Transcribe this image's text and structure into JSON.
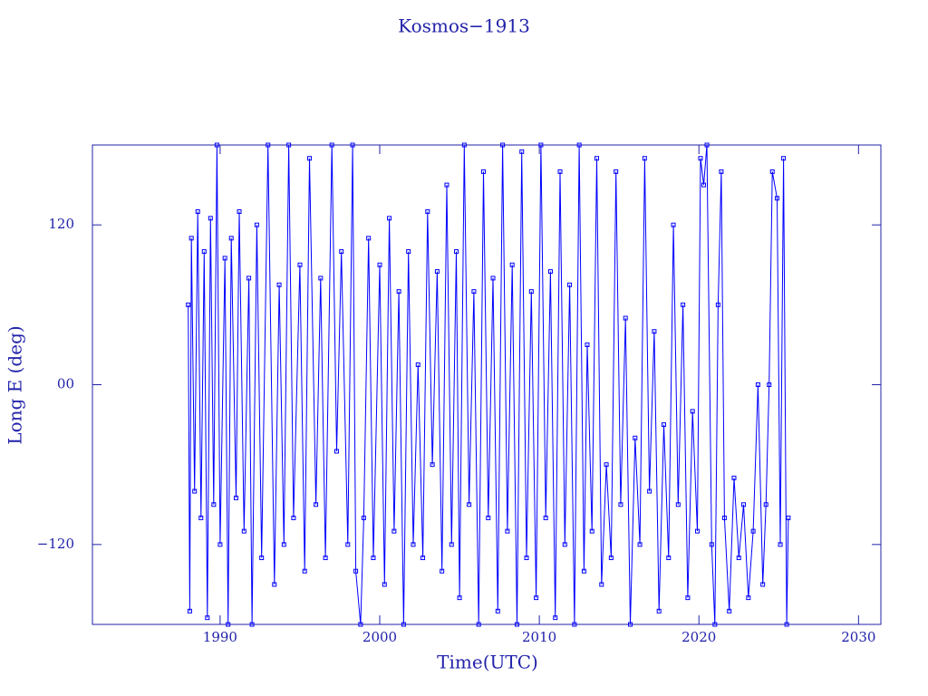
{
  "chart_data": {
    "type": "line",
    "title": "Kosmos−1913",
    "x_label": "Time(UTC)",
    "y_label": "Long E (deg)",
    "color": "#0000ff",
    "markers": true,
    "xlim": [
      1982,
      2031.4
    ],
    "xticks": [
      1990,
      2000,
      2010,
      2020,
      2030
    ],
    "ylim": [
      -180,
      180
    ],
    "yticks": [
      {
        "value": -120,
        "label": "−120"
      },
      {
        "value": 0,
        "label": "00"
      },
      120
    ],
    "x": [
      1988.0,
      1988.1,
      1988.2,
      1988.4,
      1988.6,
      1988.8,
      1989.0,
      1989.2,
      1989.4,
      1989.6,
      1989.8,
      1990.0,
      1990.3,
      1990.5,
      1990.7,
      1991.0,
      1991.2,
      1991.5,
      1991.8,
      1992.0,
      1992.3,
      1992.6,
      1993.0,
      1993.4,
      1993.7,
      1994.0,
      1994.3,
      1994.6,
      1995.0,
      1995.3,
      1995.6,
      1996.0,
      1996.3,
      1996.6,
      1997.0,
      1997.3,
      1997.6,
      1998.0,
      1998.3,
      1998.5,
      1998.8,
      1999.0,
      1999.3,
      1999.6,
      2000.0,
      2000.3,
      2000.6,
      2000.9,
      2001.2,
      2001.5,
      2001.8,
      2002.1,
      2002.4,
      2002.7,
      2003.0,
      2003.3,
      2003.6,
      2003.9,
      2004.2,
      2004.5,
      2004.8,
      2005.0,
      2005.3,
      2005.6,
      2005.9,
      2006.2,
      2006.5,
      2006.8,
      2007.1,
      2007.4,
      2007.7,
      2008.0,
      2008.3,
      2008.6,
      2008.9,
      2009.2,
      2009.5,
      2009.8,
      2010.1,
      2010.4,
      2010.7,
      2011.0,
      2011.3,
      2011.6,
      2011.9,
      2012.2,
      2012.5,
      2012.8,
      2013.0,
      2013.3,
      2013.6,
      2013.9,
      2014.2,
      2014.5,
      2014.8,
      2015.1,
      2015.4,
      2015.7,
      2016.0,
      2016.3,
      2016.6,
      2016.9,
      2017.2,
      2017.5,
      2017.8,
      2018.1,
      2018.4,
      2018.7,
      2019.0,
      2019.3,
      2019.6,
      2019.9,
      2020.1,
      2020.3,
      2020.5,
      2020.8,
      2021.0,
      2021.2,
      2021.4,
      2021.6,
      2021.9,
      2022.2,
      2022.5,
      2022.8,
      2023.1,
      2023.4,
      2023.7,
      2024.0,
      2024.2,
      2024.4,
      2024.6,
      2024.9,
      2025.1,
      2025.3,
      2025.5,
      2025.6
    ],
    "values": [
      60,
      -170,
      110,
      -80,
      130,
      -100,
      100,
      -175,
      125,
      -90,
      180,
      -120,
      95,
      -180,
      110,
      -85,
      130,
      -110,
      80,
      -180,
      120,
      -130,
      180,
      -150,
      75,
      -120,
      180,
      -100,
      90,
      -140,
      170,
      -90,
      80,
      -130,
      180,
      -50,
      100,
      -120,
      180,
      -140,
      -180,
      -100,
      110,
      -130,
      90,
      -150,
      125,
      -110,
      70,
      -180,
      100,
      -120,
      15,
      -130,
      130,
      -60,
      85,
      -140,
      150,
      -120,
      100,
      -160,
      180,
      -90,
      70,
      -180,
      160,
      -100,
      80,
      -170,
      180,
      -110,
      90,
      -180,
      175,
      -130,
      70,
      -160,
      180,
      -100,
      85,
      -175,
      160,
      -120,
      75,
      -180,
      180,
      -140,
      30,
      -110,
      170,
      -150,
      -60,
      -130,
      160,
      -90,
      50,
      -180,
      -40,
      -120,
      170,
      -80,
      40,
      -170,
      -30,
      -130,
      120,
      -90,
      60,
      -160,
      -20,
      -110,
      170,
      150,
      180,
      -120,
      -180,
      60,
      160,
      -100,
      -170,
      -70,
      -130,
      -90,
      -160,
      -110,
      0,
      -150,
      -90,
      0,
      160,
      140,
      -120,
      170,
      -180,
      -100
    ]
  }
}
